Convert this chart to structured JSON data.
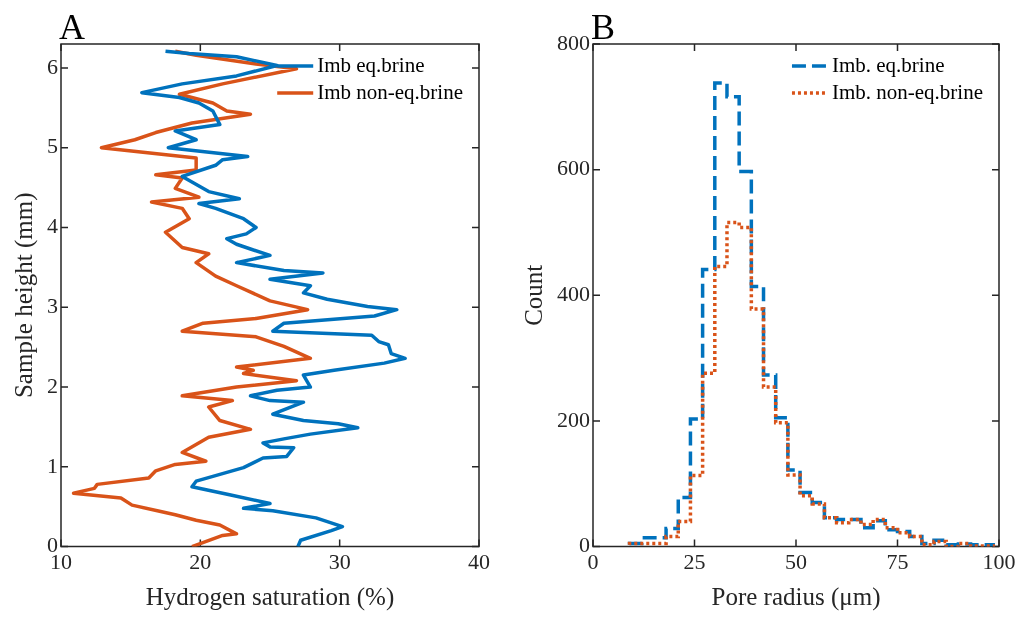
{
  "chart_data": [
    {
      "type": "line",
      "title": "A",
      "xlabel": "Hydrogen saturation (%)",
      "ylabel": "Sample height (mm)",
      "xlim": [
        10,
        40
      ],
      "xticks": [
        10,
        20,
        30,
        40
      ],
      "ylim": [
        0,
        6.3
      ],
      "yticks": [
        0,
        1,
        2,
        3,
        4,
        5,
        6
      ],
      "legend": "top right",
      "line_style": "solid",
      "series": [
        {
          "name": "Imb eq.brine",
          "color": "#0072bd",
          "x": [
            27.0,
            27.2,
            29.4,
            30.2,
            28.3,
            25.2,
            23.1,
            25.0,
            22.1,
            19.4,
            19.7,
            20.9,
            23.1,
            24.5,
            26.2,
            26.7,
            25.0,
            24.5,
            26.0,
            27.9,
            31.3,
            29.9,
            27.4,
            25.2,
            27.4,
            25.0,
            23.6,
            25.5,
            27.9,
            27.4,
            29.6,
            33.2,
            34.7,
            33.7,
            33.5,
            32.8,
            32.3,
            25.2,
            26.0,
            32.5,
            34.1,
            32.0,
            29.1,
            27.4,
            27.9,
            25.0,
            28.8,
            26.0,
            22.6,
            25.0,
            23.6,
            22.6,
            21.9,
            23.3,
            24.0,
            23.1,
            21.1,
            19.9,
            22.8,
            20.6,
            18.7,
            21.1,
            21.6,
            23.4,
            17.7,
            19.7,
            18.2,
            21.4,
            20.9,
            19.9,
            18.5,
            15.8,
            18.7,
            22.6,
            25.5,
            22.6,
            19.2,
            17.5
          ],
          "values": [
            0,
            0.08,
            0.2,
            0.25,
            0.36,
            0.45,
            0.48,
            0.54,
            0.65,
            0.75,
            0.82,
            0.88,
            0.99,
            1.11,
            1.13,
            1.24,
            1.25,
            1.3,
            1.35,
            1.41,
            1.49,
            1.54,
            1.58,
            1.66,
            1.81,
            1.83,
            1.89,
            1.96,
            2.0,
            2.15,
            2.21,
            2.3,
            2.36,
            2.42,
            2.53,
            2.57,
            2.65,
            2.7,
            2.8,
            2.89,
            2.97,
            3.01,
            3.1,
            3.18,
            3.27,
            3.35,
            3.43,
            3.46,
            3.56,
            3.65,
            3.73,
            3.79,
            3.86,
            3.92,
            4.0,
            4.11,
            4.24,
            4.3,
            4.36,
            4.45,
            4.64,
            4.78,
            4.85,
            4.89,
            5.0,
            5.1,
            5.21,
            5.29,
            5.46,
            5.56,
            5.63,
            5.69,
            5.8,
            5.9,
            6.03,
            6.14,
            6.18,
            6.21
          ]
        },
        {
          "name": "Imb non-eq.brine",
          "color": "#d95319",
          "x": [
            19.4,
            21.6,
            22.6,
            21.4,
            19.7,
            18.2,
            15.1,
            14.3,
            10.9,
            12.4,
            12.6,
            16.3,
            16.8,
            18.2,
            20.4,
            18.7,
            20.6,
            23.6,
            21.4,
            20.6,
            22.3,
            18.7,
            22.6,
            26.9,
            23.1,
            23.8,
            22.6,
            27.9,
            26.0,
            24.0,
            18.7,
            20.2,
            24.0,
            27.7,
            25.0,
            22.6,
            21.1,
            19.7,
            20.6,
            18.7,
            17.5,
            19.2,
            18.7,
            16.5,
            19.9,
            18.2,
            18.7,
            16.8,
            19.7,
            19.7,
            12.9,
            15.3,
            16.8,
            19.4,
            23.6,
            21.9,
            20.9,
            18.5,
            21.6,
            26.9,
            24.0,
            19.7,
            18.2
          ],
          "values": [
            0,
            0.14,
            0.16,
            0.27,
            0.33,
            0.4,
            0.52,
            0.61,
            0.67,
            0.73,
            0.78,
            0.86,
            0.95,
            1.03,
            1.07,
            1.18,
            1.37,
            1.47,
            1.58,
            1.75,
            1.83,
            1.89,
            2.0,
            2.08,
            2.17,
            2.21,
            2.25,
            2.36,
            2.51,
            2.63,
            2.7,
            2.8,
            2.86,
            2.97,
            3.08,
            3.27,
            3.39,
            3.56,
            3.67,
            3.75,
            3.94,
            4.11,
            4.24,
            4.32,
            4.38,
            4.49,
            4.62,
            4.66,
            4.72,
            4.87,
            5.0,
            5.1,
            5.19,
            5.31,
            5.42,
            5.46,
            5.56,
            5.67,
            5.8,
            5.99,
            6.05,
            6.16,
            6.21
          ]
        }
      ]
    },
    {
      "type": "step",
      "title": "B",
      "xlabel": "Pore radius (μm)",
      "ylabel": "Count",
      "xlim": [
        0,
        100
      ],
      "xticks": [
        0,
        25,
        50,
        75,
        100
      ],
      "ylim": [
        0,
        800
      ],
      "yticks": [
        0,
        200,
        400,
        600,
        800
      ],
      "legend": "top right",
      "x": [
        9,
        12,
        15,
        18,
        21,
        24,
        27,
        30,
        33,
        36,
        39,
        42,
        45,
        48,
        51,
        54,
        57,
        60,
        63,
        66,
        69,
        72,
        75,
        78,
        81,
        84,
        87,
        90,
        93,
        96,
        99
      ],
      "series": [
        {
          "name": "Imb. eq.brine",
          "color": "#0072bd",
          "line_style": "dashed",
          "values": [
            3,
            5,
            14,
            14,
            29,
            78,
            203,
            441,
            738,
            716,
            597,
            414,
            273,
            205,
            122,
            86,
            70,
            46,
            43,
            43,
            30,
            41,
            27,
            24,
            16,
            5,
            10,
            3,
            4,
            3,
            3
          ]
        },
        {
          "name": "Imb. non-eq.brine",
          "color": "#d95319",
          "line_style": "dotted",
          "values": [
            3,
            5,
            5,
            5,
            16,
            40,
            113,
            276,
            446,
            516,
            508,
            378,
            254,
            197,
            114,
            81,
            68,
            46,
            38,
            43,
            35,
            43,
            30,
            22,
            16,
            3,
            8,
            0,
            5,
            1,
            1
          ]
        }
      ]
    }
  ]
}
